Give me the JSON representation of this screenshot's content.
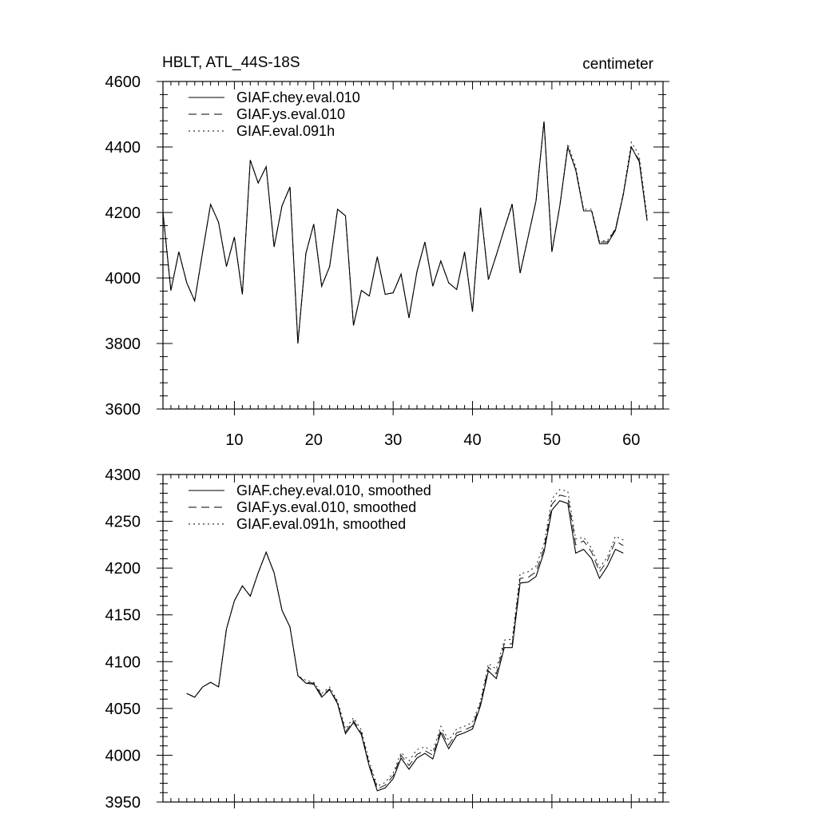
{
  "chart_data": [
    {
      "type": "line",
      "title": "HBLT, ATL_44S-18S",
      "units": "centimeter",
      "xlim": [
        1,
        64
      ],
      "ylim": [
        3600,
        4600
      ],
      "xticks": [
        10,
        20,
        30,
        40,
        50,
        60
      ],
      "yticks": [
        3600,
        3800,
        4000,
        4200,
        4400,
        4600
      ],
      "x_start": 1,
      "legend_position": "top-left",
      "series": [
        {
          "name": "GIAF.chey.eval.010",
          "dash": "solid",
          "values": [
            4200,
            3962,
            4080,
            3985,
            3930,
            4080,
            4225,
            4170,
            4035,
            4125,
            3950,
            4360,
            4290,
            4340,
            4095,
            4220,
            4278,
            3800,
            4075,
            4165,
            3975,
            4035,
            4210,
            4190,
            3855,
            3962,
            3945,
            4065,
            3950,
            3955,
            4012,
            3878,
            4020,
            4110,
            3975,
            4052,
            3985,
            3965,
            4080,
            3897,
            4215,
            3995,
            4070,
            4150,
            4225,
            4015,
            4125,
            4235,
            4478,
            4080,
            4220,
            4400,
            4330,
            4205,
            4205,
            4105,
            4105,
            4145,
            4255,
            4400,
            4355,
            4175
          ]
        },
        {
          "name": "GIAF.ys.eval.010",
          "dash": "dash",
          "values": [
            4200,
            3962,
            4080,
            3985,
            3930,
            4080,
            4225,
            4170,
            4035,
            4125,
            3950,
            4360,
            4290,
            4340,
            4095,
            4220,
            4278,
            3800,
            4075,
            4165,
            3975,
            4035,
            4210,
            4190,
            3855,
            3962,
            3945,
            4065,
            3950,
            3955,
            4012,
            3878,
            4020,
            4110,
            3975,
            4052,
            3985,
            3965,
            4080,
            3897,
            4215,
            3995,
            4070,
            4150,
            4225,
            4015,
            4125,
            4235,
            4478,
            4080,
            4220,
            4400,
            4330,
            4205,
            4205,
            4110,
            4110,
            4150,
            4255,
            4400,
            4360,
            4175
          ]
        },
        {
          "name": "GIAF.eval.091h",
          "dash": "dot",
          "values": [
            4200,
            3962,
            4080,
            3985,
            3930,
            4080,
            4225,
            4170,
            4035,
            4125,
            3950,
            4360,
            4290,
            4340,
            4095,
            4220,
            4278,
            3800,
            4075,
            4165,
            3975,
            4035,
            4210,
            4190,
            3855,
            3962,
            3945,
            4065,
            3950,
            3955,
            4012,
            3878,
            4020,
            4110,
            3975,
            4052,
            3985,
            3965,
            4080,
            3897,
            4215,
            3995,
            4070,
            4150,
            4230,
            4015,
            4125,
            4235,
            4478,
            4080,
            4220,
            4410,
            4340,
            4210,
            4210,
            4112,
            4115,
            4150,
            4260,
            4415,
            4375,
            4185
          ]
        }
      ]
    },
    {
      "type": "line",
      "xlim": [
        1,
        64
      ],
      "ylim": [
        3950,
        4300
      ],
      "xticks": [
        10,
        20,
        30,
        40,
        50,
        60
      ],
      "yticks": [
        3950,
        4000,
        4050,
        4100,
        4150,
        4200,
        4250,
        4300
      ],
      "x_start": 4,
      "legend_position": "top-left",
      "series": [
        {
          "name": "GIAF.chey.eval.010, smoothed",
          "dash": "solid",
          "values": [
            4066,
            4062,
            4073,
            4078,
            4073,
            4135,
            4165,
            4181,
            4170,
            4195,
            4217,
            4195,
            4155,
            4137,
            4085,
            4077,
            4076,
            4062,
            4070,
            4055,
            4023,
            4035,
            4022,
            3988,
            3962,
            3965,
            3975,
            3997,
            3985,
            3997,
            4002,
            3996,
            4024,
            4007,
            4021,
            4024,
            4028,
            4053,
            4090,
            4082,
            4115,
            4115,
            4184,
            4185,
            4191,
            4217,
            4262,
            4272,
            4269,
            4216,
            4220,
            4210,
            4189,
            4202,
            4220,
            4216
          ]
        },
        {
          "name": "GIAF.ys.eval.010, smoothed",
          "dash": "dash",
          "values": [
            4066,
            4062,
            4073,
            4078,
            4073,
            4135,
            4165,
            4181,
            4170,
            4195,
            4217,
            4195,
            4155,
            4137,
            4085,
            4078,
            4077,
            4064,
            4071,
            4056,
            4025,
            4037,
            4024,
            3990,
            3964,
            3968,
            3978,
            4000,
            3989,
            4001,
            4005,
            4000,
            4027,
            4011,
            4024,
            4027,
            4031,
            4055,
            4094,
            4087,
            4119,
            4119,
            4189,
            4190,
            4196,
            4221,
            4268,
            4278,
            4276,
            4225,
            4229,
            4217,
            4196,
            4208,
            4229,
            4224
          ]
        },
        {
          "name": "GIAF.eval.091h, smoothed",
          "dash": "dot",
          "values": [
            4066,
            4062,
            4073,
            4078,
            4073,
            4135,
            4165,
            4181,
            4170,
            4195,
            4217,
            4195,
            4155,
            4137,
            4085,
            4080,
            4078,
            4066,
            4073,
            4058,
            4028,
            4040,
            4027,
            3993,
            3967,
            3971,
            3981,
            4003,
            3994,
            4006,
            4009,
            4004,
            4031,
            4016,
            4028,
            4031,
            4035,
            4058,
            4098,
            4092,
            4123,
            4124,
            4194,
            4196,
            4202,
            4226,
            4274,
            4284,
            4282,
            4231,
            4233,
            4221,
            4200,
            4212,
            4234,
            4230
          ]
        }
      ]
    }
  ]
}
